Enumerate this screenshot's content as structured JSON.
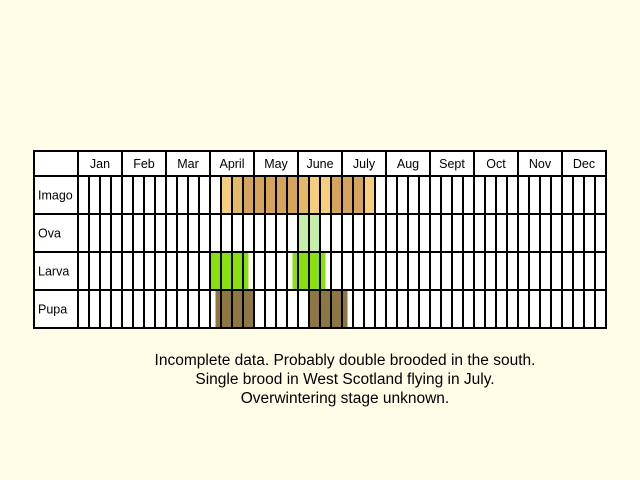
{
  "chart_data": {
    "type": "table",
    "months": [
      "Jan",
      "Feb",
      "Mar",
      "April",
      "May",
      "June",
      "July",
      "Aug",
      "Sept",
      "Oct",
      "Nov",
      "Dec"
    ],
    "quarters_per_month": 4,
    "stages": [
      {
        "name": "Imago",
        "periods": [
          {
            "start": 13,
            "end": 14,
            "color": "#f5cf7d"
          },
          {
            "start": 14,
            "end": 15,
            "color": "#e5b868"
          },
          {
            "start": 15,
            "end": 20,
            "color": "#d6a35a"
          },
          {
            "start": 20,
            "end": 21,
            "color": "#e5b868"
          },
          {
            "start": 21,
            "end": 23,
            "color": "#f5cf7d"
          },
          {
            "start": 23,
            "end": 26,
            "color": "#d6a35a"
          },
          {
            "start": 26,
            "end": 27,
            "color": "#f5cf7d"
          }
        ]
      },
      {
        "name": "Ova",
        "periods": [
          {
            "start": 20,
            "end": 22,
            "color": "#c6eeaa"
          }
        ]
      },
      {
        "name": "Larva",
        "periods": [
          {
            "start": 12,
            "end": 15.5,
            "color": "#88e00e"
          },
          {
            "start": 19.5,
            "end": 22.5,
            "color": "#88e00e"
          }
        ]
      },
      {
        "name": "Pupa",
        "periods": [
          {
            "start": 12.5,
            "end": 16,
            "color": "#8c7641"
          },
          {
            "start": 21,
            "end": 24.5,
            "color": "#8c7641"
          }
        ]
      }
    ]
  },
  "caption": {
    "line1": "Incomplete data. Probably double brooded in the south.",
    "line2": "Single brood in West Scotland flying in July.",
    "line3": "Overwintering stage unknown."
  }
}
